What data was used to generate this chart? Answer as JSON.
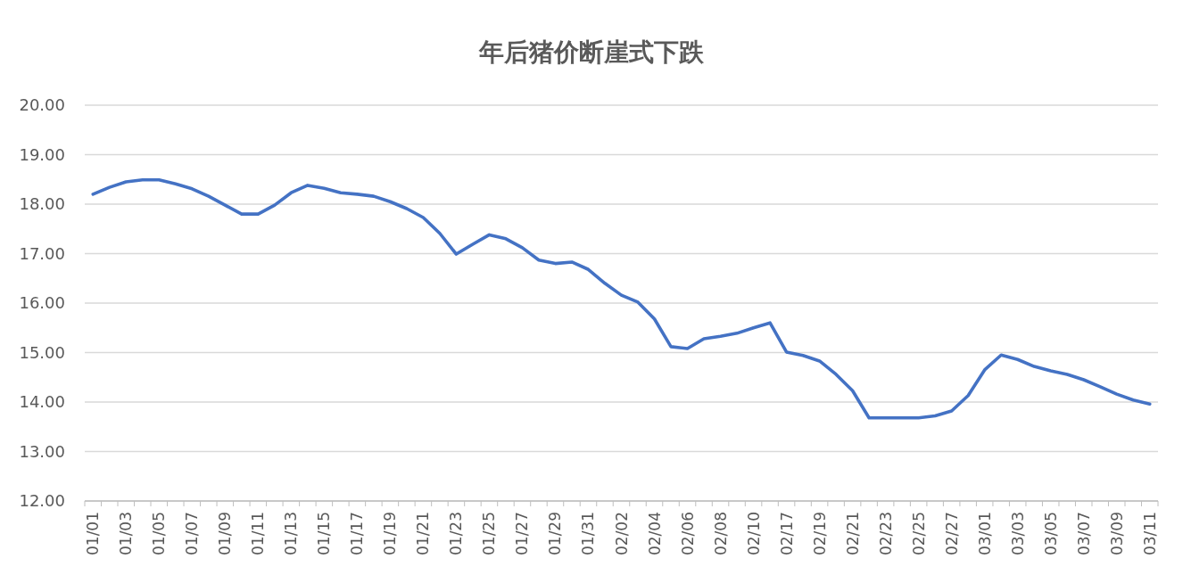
{
  "chart_data": {
    "type": "line",
    "title": "年后猪价断崖式下跌",
    "categories": [
      "01/01",
      null,
      "01/03",
      null,
      "01/05",
      null,
      "01/07",
      null,
      "01/09",
      null,
      "01/11",
      null,
      "01/13",
      null,
      "01/15",
      null,
      "01/17",
      null,
      "01/19",
      null,
      "01/21",
      null,
      "01/23",
      null,
      "01/25",
      null,
      "01/27",
      null,
      "01/29",
      null,
      "01/31",
      null,
      "02/02",
      null,
      "02/04",
      null,
      "02/06",
      null,
      "02/08",
      null,
      "02/10",
      null,
      "02/17",
      null,
      "02/19",
      null,
      "02/21",
      null,
      "02/23",
      null,
      "02/25",
      null,
      "02/27",
      null,
      "03/01",
      null,
      "03/03",
      null,
      "03/05",
      null,
      "03/07",
      null,
      "03/09",
      null,
      "03/11"
    ],
    "series": [
      {
        "color": "#4472c4",
        "values": [
          18.2,
          18.34,
          18.45,
          18.49,
          18.49,
          18.41,
          18.31,
          18.16,
          17.98,
          17.8,
          17.8,
          17.98,
          18.23,
          18.38,
          18.32,
          18.23,
          18.2,
          18.16,
          18.05,
          17.91,
          17.73,
          17.41,
          16.99,
          17.19,
          17.38,
          17.3,
          17.12,
          16.87,
          16.8,
          16.83,
          16.68,
          16.4,
          16.16,
          16.02,
          15.68,
          15.12,
          15.08,
          15.28,
          15.33,
          15.39,
          15.5,
          15.6,
          15.01,
          14.94,
          14.83,
          14.56,
          14.23,
          13.68,
          13.68,
          13.68,
          13.68,
          13.72,
          13.82,
          14.13,
          14.65,
          14.95,
          14.86,
          14.72,
          14.63,
          14.56,
          14.45,
          14.31,
          14.16,
          14.04,
          13.96
        ]
      }
    ],
    "ylim": [
      12,
      20
    ],
    "yticks": [
      {
        "value": 12,
        "label": "12.00"
      },
      {
        "value": 13,
        "label": "13.00"
      },
      {
        "value": 14,
        "label": "14.00"
      },
      {
        "value": 15,
        "label": "15.00"
      },
      {
        "value": 16,
        "label": "16.00"
      },
      {
        "value": 17,
        "label": "17.00"
      },
      {
        "value": 18,
        "label": "18.00"
      },
      {
        "value": 19,
        "label": "19.00"
      },
      {
        "value": 20,
        "label": "20.00"
      }
    ],
    "grid": "y",
    "line_style": "solid"
  }
}
